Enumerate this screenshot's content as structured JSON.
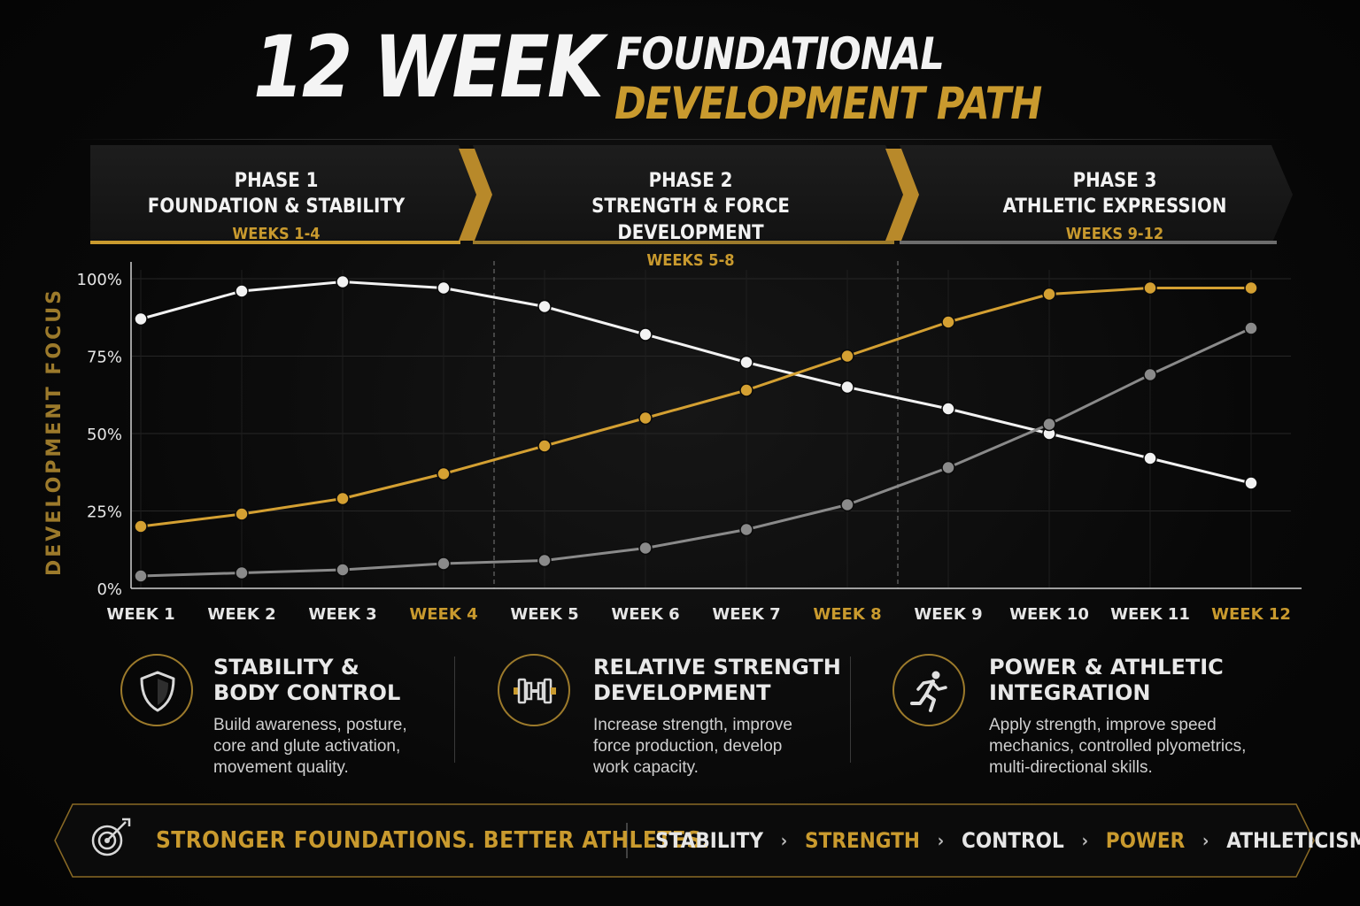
{
  "title": {
    "big": "12 WEEK",
    "line1": "FOUNDATIONAL",
    "line2": "DEVELOPMENT PATH"
  },
  "phases": [
    {
      "label": "PHASE 1",
      "name": "FOUNDATION & STABILITY",
      "weeks": "WEEKS 1-4"
    },
    {
      "label": "PHASE 2",
      "name": "STRENGTH & FORCE DEVELOPMENT",
      "weeks": "WEEKS 5-8"
    },
    {
      "label": "PHASE 3",
      "name": "ATHLETIC EXPRESSION",
      "weeks": "WEEKS 9-12"
    }
  ],
  "chart_data": {
    "type": "line",
    "ylabel": "DEVELOPMENT FOCUS",
    "xlabel": "",
    "ylim": [
      0,
      100
    ],
    "yticks": [
      "0%",
      "25%",
      "50%",
      "75%",
      "100%"
    ],
    "ytick_values": [
      0,
      25,
      50,
      75,
      100
    ],
    "categories": [
      "WEEK 1",
      "WEEK 2",
      "WEEK 3",
      "WEEK 4",
      "WEEK 5",
      "WEEK 6",
      "WEEK 7",
      "WEEK 8",
      "WEEK 9",
      "WEEK 10",
      "WEEK 11",
      "WEEK 12"
    ],
    "highlighted_categories": [
      "WEEK 4",
      "WEEK 8",
      "WEEK 12"
    ],
    "phase_boundaries_after": [
      "WEEK 4",
      "WEEK 8"
    ],
    "grid": true,
    "series": [
      {
        "color": "#f2f2f2",
        "values": [
          87,
          96,
          99,
          97,
          91,
          82,
          73,
          65,
          58,
          50,
          42,
          34
        ]
      },
      {
        "color": "#d4a032",
        "values": [
          20,
          24,
          29,
          37,
          46,
          55,
          64,
          75,
          86,
          95,
          97,
          97
        ]
      },
      {
        "color": "#8a8a8a",
        "values": [
          4,
          5,
          6,
          8,
          9,
          13,
          19,
          27,
          39,
          53,
          69,
          84
        ]
      }
    ]
  },
  "info": [
    {
      "icon": "shield-icon",
      "title1": "STABILITY &",
      "title2": "BODY CONTROL",
      "text": [
        "Build awareness, posture,",
        "core and glute activation,",
        "movement quality."
      ]
    },
    {
      "icon": "dumbbell-icon",
      "title1": "RELATIVE STRENGTH",
      "title2": "DEVELOPMENT",
      "text": [
        "Increase strength, improve",
        "force production, develop",
        "work capacity."
      ]
    },
    {
      "icon": "runner-icon",
      "title1": "POWER & ATHLETIC",
      "title2": "INTEGRATION",
      "text": [
        "Apply strength, improve speed",
        "mechanics, controlled plyometrics,",
        "multi-directional skills."
      ]
    }
  ],
  "banner": {
    "icon": "target-icon",
    "tagline": "STRONGER FOUNDATIONS. BETTER ATHLETES.",
    "pillars": [
      "STABILITY",
      "STRENGTH",
      "CONTROL",
      "POWER",
      "ATHLETICISM"
    ],
    "separator": "›"
  },
  "colors": {
    "gold": "#c99a2e",
    "white": "#f2f2f2",
    "gray": "#8a8a8a",
    "background": "#070707"
  }
}
